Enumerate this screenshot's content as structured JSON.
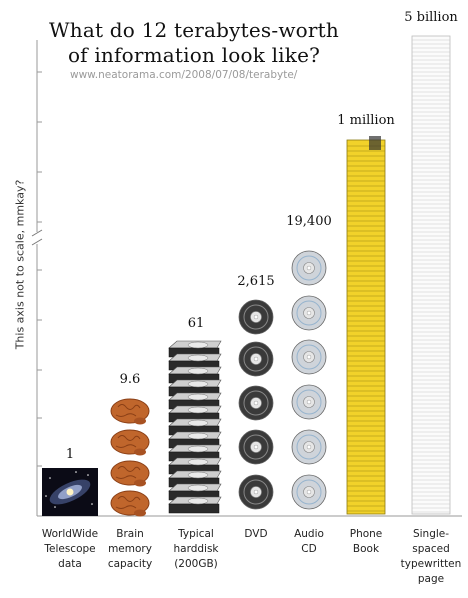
{
  "title_line1": "What do 12 terabytes-worth",
  "title_line2": "of information look like?",
  "subtitle": "www.neatorama.com/2008/07/08/terabyte/",
  "axis_label": "This axis not to scale, mmkay?",
  "chart_data": {
    "type": "bar",
    "title": "What do 12 terabytes-worth of information look like?",
    "ylabel": "This axis not to scale, mmkay?",
    "categories": [
      [
        "WorldWide",
        "Telescope",
        "data"
      ],
      [
        "Brain",
        "memory",
        "capacity"
      ],
      [
        "Typical",
        "harddisk",
        "(200GB)"
      ],
      [
        "DVD"
      ],
      [
        "Audio",
        "CD"
      ],
      [
        "Phone",
        "Book"
      ],
      [
        "Single-",
        "spaced",
        "typewritten",
        "page"
      ]
    ],
    "value_labels": [
      "1",
      "9.6",
      "61",
      "2,615",
      "19,400",
      "1 million",
      "5 billion"
    ],
    "values": [
      1,
      9.6,
      61,
      2615,
      19400,
      1000000,
      5000000000
    ],
    "units": [
      "galaxy image",
      "brain",
      "hard disk",
      "DVD",
      "CD",
      "phone book",
      "page"
    ],
    "colors": {
      "brain": "#c0662c",
      "phonebook": "#f2d22a",
      "disk": "#cfd4da",
      "hdd": "#2a2a2a"
    }
  }
}
